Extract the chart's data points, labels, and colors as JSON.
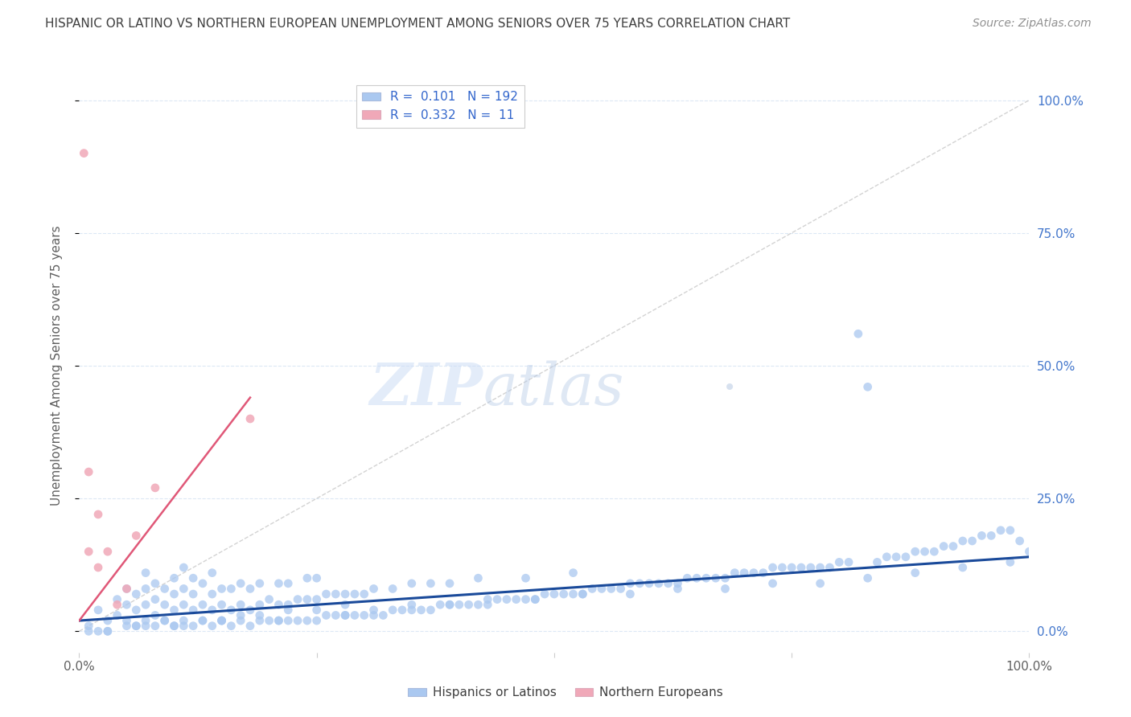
{
  "title": "HISPANIC OR LATINO VS NORTHERN EUROPEAN UNEMPLOYMENT AMONG SENIORS OVER 75 YEARS CORRELATION CHART",
  "source": "Source: ZipAtlas.com",
  "ylabel": "Unemployment Among Seniors over 75 years",
  "xlim": [
    0,
    1.0
  ],
  "ylim": [
    -0.04,
    1.04
  ],
  "right_yticks": [
    0.0,
    0.25,
    0.5,
    0.75,
    1.0
  ],
  "right_yticklabels": [
    "0.0%",
    "25.0%",
    "50.0%",
    "75.0%",
    "100.0%"
  ],
  "blue_color": "#aac8f0",
  "blue_line_color": "#1a4a9a",
  "pink_color": "#f0a8b8",
  "pink_line_color": "#e05878",
  "ref_line_color": "#c8c8c8",
  "blue_R": 0.101,
  "blue_N": 192,
  "pink_R": 0.332,
  "pink_N": 11,
  "background_color": "#ffffff",
  "grid_color": "#dce8f5",
  "title_color": "#404040",
  "source_color": "#909090",
  "axis_label_color": "#606060",
  "right_tick_color": "#4477cc",
  "x_blue": [
    0.02,
    0.03,
    0.04,
    0.04,
    0.05,
    0.05,
    0.05,
    0.06,
    0.06,
    0.06,
    0.07,
    0.07,
    0.07,
    0.07,
    0.08,
    0.08,
    0.08,
    0.08,
    0.09,
    0.09,
    0.09,
    0.1,
    0.1,
    0.1,
    0.1,
    0.11,
    0.11,
    0.11,
    0.11,
    0.12,
    0.12,
    0.12,
    0.12,
    0.13,
    0.13,
    0.13,
    0.14,
    0.14,
    0.14,
    0.14,
    0.15,
    0.15,
    0.15,
    0.16,
    0.16,
    0.16,
    0.17,
    0.17,
    0.17,
    0.18,
    0.18,
    0.18,
    0.19,
    0.19,
    0.19,
    0.2,
    0.2,
    0.21,
    0.21,
    0.21,
    0.22,
    0.22,
    0.22,
    0.23,
    0.23,
    0.24,
    0.24,
    0.24,
    0.25,
    0.25,
    0.25,
    0.26,
    0.26,
    0.27,
    0.27,
    0.28,
    0.28,
    0.29,
    0.29,
    0.3,
    0.3,
    0.31,
    0.31,
    0.32,
    0.33,
    0.33,
    0.34,
    0.35,
    0.35,
    0.36,
    0.37,
    0.37,
    0.38,
    0.39,
    0.39,
    0.4,
    0.41,
    0.42,
    0.42,
    0.43,
    0.44,
    0.45,
    0.46,
    0.47,
    0.47,
    0.48,
    0.49,
    0.5,
    0.51,
    0.52,
    0.52,
    0.53,
    0.54,
    0.55,
    0.56,
    0.57,
    0.58,
    0.59,
    0.6,
    0.61,
    0.62,
    0.63,
    0.64,
    0.65,
    0.66,
    0.67,
    0.68,
    0.69,
    0.7,
    0.71,
    0.72,
    0.73,
    0.74,
    0.75,
    0.76,
    0.77,
    0.78,
    0.79,
    0.8,
    0.81,
    0.82,
    0.83,
    0.84,
    0.85,
    0.86,
    0.87,
    0.88,
    0.89,
    0.9,
    0.91,
    0.92,
    0.93,
    0.94,
    0.95,
    0.96,
    0.97,
    0.98,
    0.99,
    1.0,
    0.01,
    0.02,
    0.03,
    0.05,
    0.07,
    0.09,
    0.11,
    0.13,
    0.15,
    0.17,
    0.19,
    0.22,
    0.25,
    0.28,
    0.31,
    0.35,
    0.39,
    0.43,
    0.48,
    0.53,
    0.58,
    0.63,
    0.68,
    0.73,
    0.78,
    0.83,
    0.88,
    0.93,
    0.98,
    0.01,
    0.03,
    0.06,
    0.1,
    0.15,
    0.21,
    0.28
  ],
  "y_blue": [
    0.04,
    0.02,
    0.03,
    0.06,
    0.02,
    0.05,
    0.08,
    0.01,
    0.04,
    0.07,
    0.02,
    0.05,
    0.08,
    0.11,
    0.01,
    0.03,
    0.06,
    0.09,
    0.02,
    0.05,
    0.08,
    0.01,
    0.04,
    0.07,
    0.1,
    0.02,
    0.05,
    0.08,
    0.12,
    0.01,
    0.04,
    0.07,
    0.1,
    0.02,
    0.05,
    0.09,
    0.01,
    0.04,
    0.07,
    0.11,
    0.02,
    0.05,
    0.08,
    0.01,
    0.04,
    0.08,
    0.02,
    0.05,
    0.09,
    0.01,
    0.04,
    0.08,
    0.02,
    0.05,
    0.09,
    0.02,
    0.06,
    0.02,
    0.05,
    0.09,
    0.02,
    0.05,
    0.09,
    0.02,
    0.06,
    0.02,
    0.06,
    0.1,
    0.02,
    0.06,
    0.1,
    0.03,
    0.07,
    0.03,
    0.07,
    0.03,
    0.07,
    0.03,
    0.07,
    0.03,
    0.07,
    0.03,
    0.08,
    0.03,
    0.04,
    0.08,
    0.04,
    0.04,
    0.09,
    0.04,
    0.04,
    0.09,
    0.05,
    0.05,
    0.09,
    0.05,
    0.05,
    0.05,
    0.1,
    0.05,
    0.06,
    0.06,
    0.06,
    0.1,
    0.06,
    0.06,
    0.07,
    0.07,
    0.07,
    0.07,
    0.11,
    0.07,
    0.08,
    0.08,
    0.08,
    0.08,
    0.09,
    0.09,
    0.09,
    0.09,
    0.09,
    0.09,
    0.1,
    0.1,
    0.1,
    0.1,
    0.1,
    0.11,
    0.11,
    0.11,
    0.11,
    0.12,
    0.12,
    0.12,
    0.12,
    0.12,
    0.12,
    0.12,
    0.13,
    0.13,
    0.56,
    0.46,
    0.13,
    0.14,
    0.14,
    0.14,
    0.15,
    0.15,
    0.15,
    0.16,
    0.16,
    0.17,
    0.17,
    0.18,
    0.18,
    0.19,
    0.19,
    0.17,
    0.15,
    0.0,
    0.0,
    0.0,
    0.01,
    0.01,
    0.02,
    0.01,
    0.02,
    0.02,
    0.03,
    0.03,
    0.04,
    0.04,
    0.05,
    0.04,
    0.05,
    0.05,
    0.06,
    0.06,
    0.07,
    0.07,
    0.08,
    0.08,
    0.09,
    0.09,
    0.1,
    0.11,
    0.12,
    0.13,
    0.01,
    0.0,
    0.01,
    0.01,
    0.02,
    0.02,
    0.03
  ],
  "x_pink": [
    0.005,
    0.01,
    0.01,
    0.02,
    0.02,
    0.03,
    0.04,
    0.05,
    0.06,
    0.08,
    0.18
  ],
  "y_pink": [
    0.9,
    0.15,
    0.3,
    0.12,
    0.22,
    0.15,
    0.05,
    0.08,
    0.18,
    0.27,
    0.4
  ],
  "blue_line_x": [
    0.0,
    1.0
  ],
  "blue_line_y": [
    0.02,
    0.14
  ],
  "pink_line_x": [
    0.0,
    0.18
  ],
  "pink_line_y": [
    0.02,
    0.44
  ]
}
